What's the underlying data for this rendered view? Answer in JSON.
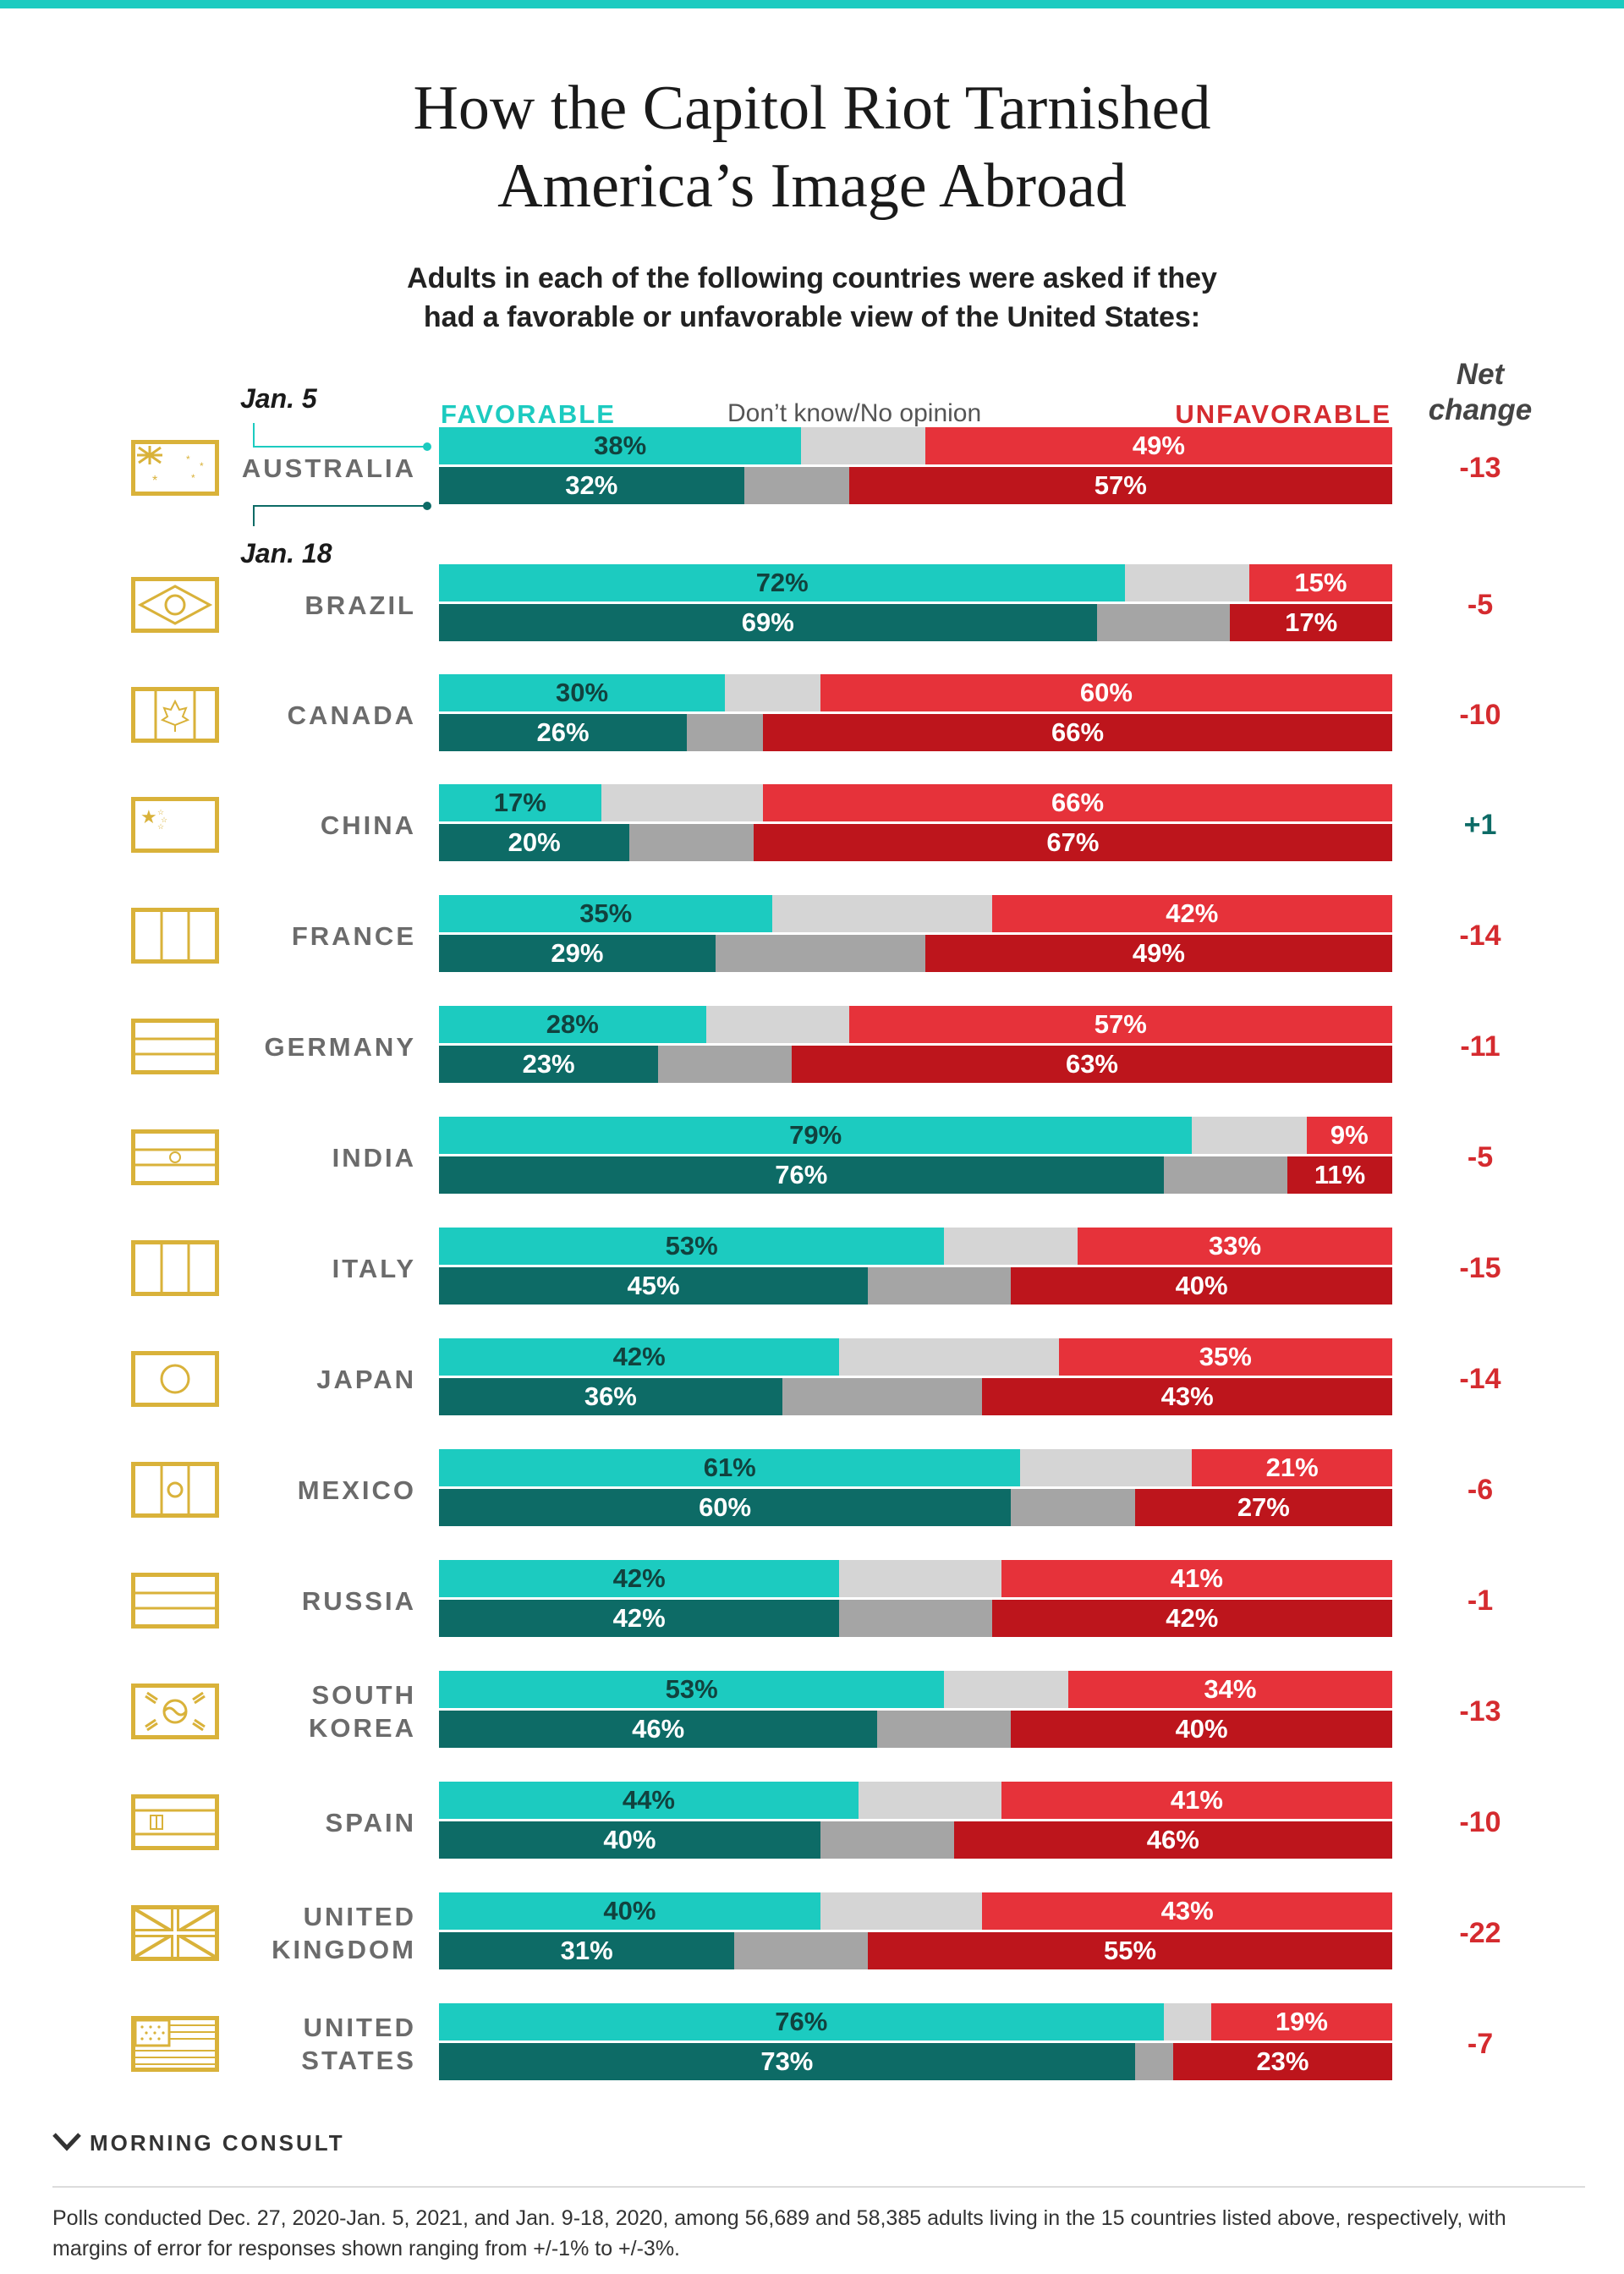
{
  "title_line1": "How the Capitol Riot Tarnished",
  "title_line2": "America’s Image Abroad",
  "subtitle_line1": "Adults in each of the following countries were asked if they",
  "subtitle_line2": "had a favorable or unfavorable view of the United States:",
  "legend": {
    "jan5": "Jan. 5",
    "jan18": "Jan. 18",
    "favorable": "FAVORABLE",
    "dont_know": "Don’t know/No opinion",
    "unfavorable": "UNFAVORABLE",
    "net_line1": "Net",
    "net_line2": "change"
  },
  "colors": {
    "favorable_jan5": "#1ccbc0",
    "favorable_jan18": "#0d6b66",
    "dontknow_jan5": "#d5d5d5",
    "dontknow_jan18": "#a5a5a5",
    "unfavorable_jan5": "#e6323a",
    "unfavorable_jan18": "#bd151c",
    "flag_outline": "#d9b23a"
  },
  "chart_data": {
    "type": "bar",
    "orientation": "horizontal-stacked-100",
    "series": [
      {
        "name": "Jan. 5"
      },
      {
        "name": "Jan. 18"
      }
    ],
    "segments": [
      "FAVORABLE",
      "Don’t know/No opinion",
      "UNFAVORABLE"
    ],
    "rows": [
      {
        "country": [
          "AUSTRALIA"
        ],
        "flag_icon": "australia-flag-icon",
        "jan5": {
          "fav": 38,
          "unf": 49
        },
        "jan18": {
          "fav": 32,
          "unf": 57
        },
        "net": "-13"
      },
      {
        "country": [
          "BRAZIL"
        ],
        "flag_icon": "brazil-flag-icon",
        "jan5": {
          "fav": 72,
          "unf": 15
        },
        "jan18": {
          "fav": 69,
          "unf": 17
        },
        "net": "-5"
      },
      {
        "country": [
          "CANADA"
        ],
        "flag_icon": "canada-flag-icon",
        "jan5": {
          "fav": 30,
          "unf": 60
        },
        "jan18": {
          "fav": 26,
          "unf": 66
        },
        "net": "-10"
      },
      {
        "country": [
          "CHINA"
        ],
        "flag_icon": "china-flag-icon",
        "jan5": {
          "fav": 17,
          "unf": 66
        },
        "jan18": {
          "fav": 20,
          "unf": 67
        },
        "net": "+1"
      },
      {
        "country": [
          "FRANCE"
        ],
        "flag_icon": "france-flag-icon",
        "jan5": {
          "fav": 35,
          "unf": 42
        },
        "jan18": {
          "fav": 29,
          "unf": 49
        },
        "net": "-14"
      },
      {
        "country": [
          "GERMANY"
        ],
        "flag_icon": "germany-flag-icon",
        "jan5": {
          "fav": 28,
          "unf": 57
        },
        "jan18": {
          "fav": 23,
          "unf": 63
        },
        "net": "-11"
      },
      {
        "country": [
          "INDIA"
        ],
        "flag_icon": "india-flag-icon",
        "jan5": {
          "fav": 79,
          "unf": 9
        },
        "jan18": {
          "fav": 76,
          "unf": 11
        },
        "net": "-5"
      },
      {
        "country": [
          "ITALY"
        ],
        "flag_icon": "italy-flag-icon",
        "jan5": {
          "fav": 53,
          "unf": 33
        },
        "jan18": {
          "fav": 45,
          "unf": 40
        },
        "net": "-15"
      },
      {
        "country": [
          "JAPAN"
        ],
        "flag_icon": "japan-flag-icon",
        "jan5": {
          "fav": 42,
          "unf": 35
        },
        "jan18": {
          "fav": 36,
          "unf": 43
        },
        "net": "-14"
      },
      {
        "country": [
          "MEXICO"
        ],
        "flag_icon": "mexico-flag-icon",
        "jan5": {
          "fav": 61,
          "unf": 21
        },
        "jan18": {
          "fav": 60,
          "unf": 27
        },
        "net": "-6"
      },
      {
        "country": [
          "RUSSIA"
        ],
        "flag_icon": "russia-flag-icon",
        "jan5": {
          "fav": 42,
          "unf": 41
        },
        "jan18": {
          "fav": 42,
          "unf": 42
        },
        "net": "-1"
      },
      {
        "country": [
          "SOUTH",
          "KOREA"
        ],
        "flag_icon": "south-korea-flag-icon",
        "jan5": {
          "fav": 53,
          "unf": 34
        },
        "jan18": {
          "fav": 46,
          "unf": 40
        },
        "net": "-13"
      },
      {
        "country": [
          "SPAIN"
        ],
        "flag_icon": "spain-flag-icon",
        "jan5": {
          "fav": 44,
          "unf": 41
        },
        "jan18": {
          "fav": 40,
          "unf": 46
        },
        "net": "-10"
      },
      {
        "country": [
          "UNITED",
          "KINGDOM"
        ],
        "flag_icon": "uk-flag-icon",
        "jan5": {
          "fav": 40,
          "unf": 43
        },
        "jan18": {
          "fav": 31,
          "unf": 55
        },
        "net": "-22"
      },
      {
        "country": [
          "UNITED",
          "STATES"
        ],
        "flag_icon": "us-flag-icon",
        "jan5": {
          "fav": 76,
          "unf": 19
        },
        "jan18": {
          "fav": 73,
          "unf": 23
        },
        "net": "-7"
      }
    ]
  },
  "brand": "MORNING CONSULT",
  "footnote": "Polls conducted Dec. 27, 2020-Jan. 5, 2021, and Jan. 9-18, 2020, among 56,689 and 58,385 adults living in the 15 countries listed above, respectively, with margins of error for responses shown ranging from +/-1% to +/-3%."
}
